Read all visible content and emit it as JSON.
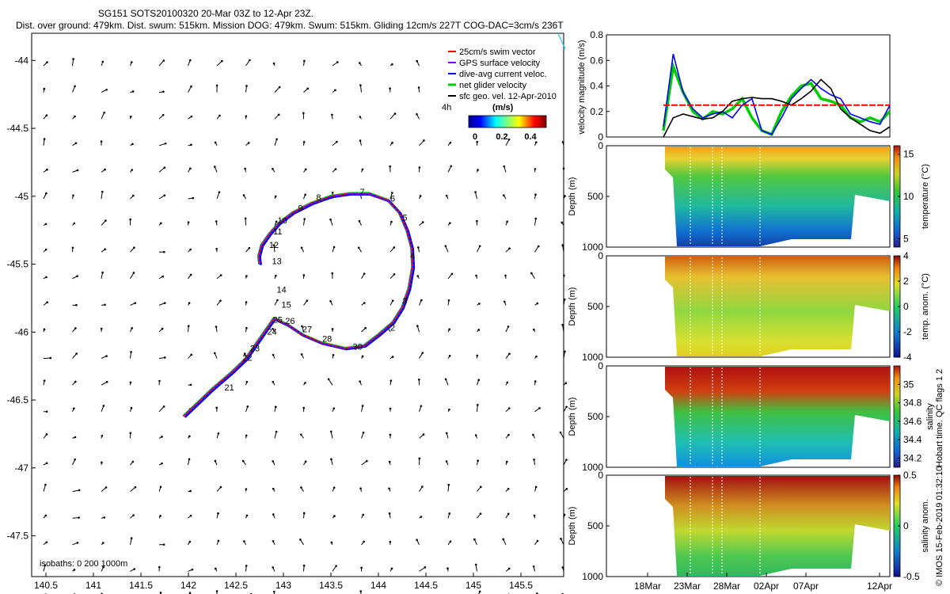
{
  "title_line1": "SG151 SOTS20100320 20-Mar 03Z to 12-Apr 23Z.",
  "title_line2": "Dist. over ground: 479km. Dist. swum: 515km. Mission DOG: 479km. Swum: 515km. Gliding 12cm/s 227T COG-DAC=3cm/s 236T",
  "map": {
    "x_ticks": [
      "140.5",
      "141",
      "141.5",
      "142",
      "142.5",
      "143",
      "143.5",
      "144",
      "144.5",
      "145",
      "145.5"
    ],
    "y_ticks": [
      "-44",
      "-44.5",
      "-45",
      "-45.5",
      "-46",
      "-46.5",
      "-47",
      "-47.5"
    ],
    "legend": [
      "25cm/s swim vector",
      "GPS surface velocity",
      "dive-avg current veloc.",
      "net glider velocity",
      "sfc geo. vel. 12-Apr-2010"
    ],
    "legend_colors": [
      "#ff0000",
      "#8000ff",
      "#0000ff",
      "#00cc00",
      "#000000"
    ],
    "scale_label": "4h",
    "colorbar_title": "(m/s)",
    "colorbar_ticks": [
      "0",
      "0.2",
      "0.4"
    ],
    "isobaths": "isobaths: 0   200  1000m",
    "day_labels": [
      {
        "t": "2",
        "lon": 144.15,
        "lat": -45.99
      },
      {
        "t": "3",
        "lon": 144.28,
        "lat": -45.79
      },
      {
        "t": "4",
        "lon": 144.36,
        "lat": -45.46
      },
      {
        "t": "5",
        "lon": 144.28,
        "lat": -45.18
      },
      {
        "t": "6",
        "lon": 144.15,
        "lat": -45.04
      },
      {
        "t": "7",
        "lon": 143.83,
        "lat": -44.99
      },
      {
        "t": "8",
        "lon": 143.37,
        "lat": -45.03
      },
      {
        "t": "9",
        "lon": 143.18,
        "lat": -45.11
      },
      {
        "t": "10",
        "lon": 142.99,
        "lat": -45.2
      },
      {
        "t": "11",
        "lon": 142.94,
        "lat": -45.28
      },
      {
        "t": "12",
        "lon": 142.9,
        "lat": -45.38
      },
      {
        "t": "13",
        "lon": 142.93,
        "lat": -45.5
      },
      {
        "t": "14",
        "lon": 142.98,
        "lat": -45.71
      },
      {
        "t": "15",
        "lon": 143.03,
        "lat": -45.82
      },
      {
        "t": "21",
        "lon": 142.43,
        "lat": -46.43
      },
      {
        "t": "22",
        "lon": 142.62,
        "lat": -46.21
      },
      {
        "t": "23",
        "lon": 142.7,
        "lat": -46.14
      },
      {
        "t": "24",
        "lon": 142.88,
        "lat": -46.02
      },
      {
        "t": "25",
        "lon": 142.94,
        "lat": -45.93
      },
      {
        "t": "26",
        "lon": 143.07,
        "lat": -45.94
      },
      {
        "t": "27",
        "lon": 143.25,
        "lat": -46.0
      },
      {
        "t": "28",
        "lon": 143.46,
        "lat": -46.07
      },
      {
        "t": "30",
        "lon": 143.78,
        "lat": -46.13
      }
    ]
  },
  "velocity_panel": {
    "ylabel": "velocity magnitude (m/s)",
    "y_ticks": [
      "0",
      "0.2",
      "0.4",
      "0.6",
      "0.8"
    ],
    "ylim": [
      0,
      0.8
    ],
    "swim_vector_level": 0.25
  },
  "section_panels": [
    {
      "ylabel": "Depth (m)",
      "cblabel": "temperature (°C)",
      "cb_ticks": [
        "5",
        "10",
        "15"
      ]
    },
    {
      "ylabel": "Depth (m)",
      "cblabel": "temp. anom. (°C)",
      "cb_ticks": [
        "-4",
        "-2",
        "0",
        "2",
        "4"
      ]
    },
    {
      "ylabel": "Depth (m)",
      "cblabel": "salinity",
      "cb_ticks": [
        "34.2",
        "34.4",
        "34.6",
        "34.8",
        "35"
      ]
    },
    {
      "ylabel": "Depth (m)",
      "cblabel": "salinity anom.",
      "cb_ticks": [
        "-0.5",
        "0",
        "0.5"
      ]
    }
  ],
  "depth_ticks": [
    "0",
    "500",
    "1000"
  ],
  "time_ticks": [
    "18Mar",
    "23Mar",
    "28Mar",
    "02Apr",
    "07Apr",
    "12Apr"
  ],
  "qc_note": "Hobart time. QC flags 1  2",
  "credit": "© IMOS 15-Feb-2019 01:32:10",
  "chart_data": [
    {
      "type": "line",
      "title": "SG151 SOTS20100320 20-Mar 03Z to 12-Apr 23Z.",
      "xlabel": "",
      "ylabel": "",
      "xlim": [
        140.35,
        145.95
      ],
      "ylim": [
        -47.8,
        -43.8
      ],
      "series": [
        {
          "name": "25cm/s swim vector",
          "x": [
            141.95,
            142.1,
            142.25,
            142.45,
            142.6,
            142.7,
            142.8,
            142.9,
            143.05,
            143.2,
            143.4,
            143.65,
            143.85,
            144.0,
            144.15,
            144.25,
            144.32,
            144.36,
            144.35,
            144.3,
            144.22,
            144.1,
            143.9,
            143.7,
            143.5,
            143.3,
            143.1,
            142.95,
            142.85,
            142.77,
            142.74,
            142.75
          ],
          "y": [
            -46.62,
            -46.52,
            -46.42,
            -46.3,
            -46.2,
            -46.1,
            -46.0,
            -45.9,
            -45.95,
            -46.02,
            -46.08,
            -46.12,
            -46.1,
            -46.02,
            -45.93,
            -45.82,
            -45.68,
            -45.52,
            -45.38,
            -45.25,
            -45.12,
            -45.03,
            -44.98,
            -44.98,
            -45.0,
            -45.05,
            -45.12,
            -45.2,
            -45.28,
            -45.36,
            -45.44,
            -45.5
          ]
        }
      ]
    },
    {
      "type": "line",
      "title": "",
      "xlabel": "",
      "ylabel": "velocity magnitude (m/s)",
      "x": [
        "21Mar",
        "22Mar",
        "23Mar",
        "24Mar",
        "25Mar",
        "26Mar",
        "27Mar",
        "28Mar",
        "29Mar",
        "30Mar",
        "31Mar",
        "01Apr",
        "02Apr",
        "03Apr",
        "04Apr",
        "05Apr",
        "06Apr",
        "07Apr",
        "08Apr",
        "09Apr",
        "10Apr",
        "11Apr",
        "12Apr",
        "13Apr"
      ],
      "ylim": [
        0,
        0.8
      ],
      "series": [
        {
          "name": "dive-avg current veloc.",
          "values": [
            0.08,
            0.65,
            0.35,
            0.22,
            0.15,
            0.18,
            0.2,
            0.15,
            0.25,
            0.3,
            0.05,
            0.02,
            0.15,
            0.3,
            0.38,
            0.45,
            0.38,
            0.33,
            0.3,
            0.18,
            0.15,
            0.12,
            0.1,
            0.25
          ]
        },
        {
          "name": "net glider velocity",
          "values": [
            0.05,
            0.55,
            0.35,
            0.2,
            0.14,
            0.2,
            0.18,
            0.22,
            0.3,
            0.15,
            0.05,
            0.02,
            0.2,
            0.32,
            0.4,
            0.42,
            0.3,
            0.28,
            0.25,
            0.15,
            0.12,
            0.15,
            0.12,
            0.2
          ]
        },
        {
          "name": "sfc geo. vel. 12-Apr-2010",
          "values": [
            0.0,
            0.15,
            0.18,
            0.16,
            0.14,
            0.15,
            0.2,
            0.28,
            0.3,
            0.31,
            0.3,
            0.3,
            0.28,
            0.25,
            0.3,
            0.36,
            0.45,
            0.38,
            0.22,
            0.15,
            0.1,
            0.05,
            0.03,
            0.08
          ]
        },
        {
          "name": "25cm/s swim vector",
          "values": [
            0.25,
            0.25,
            0.25,
            0.25,
            0.25,
            0.25,
            0.25,
            0.25,
            0.25,
            0.25,
            0.25,
            0.25,
            0.25,
            0.25,
            0.25,
            0.25,
            0.25,
            0.25,
            0.25,
            0.25,
            0.25,
            0.25,
            0.25,
            0.25
          ]
        }
      ]
    },
    {
      "type": "heatmap",
      "title": "",
      "xlabel": "",
      "ylabel": "Depth (m)",
      "colorbar_label": "temperature (°C)",
      "clim": [
        4,
        16
      ],
      "ylim": [
        1000,
        0
      ]
    },
    {
      "type": "heatmap",
      "title": "",
      "xlabel": "",
      "ylabel": "Depth (m)",
      "colorbar_label": "temp. anom. (°C)",
      "clim": [
        -4,
        4
      ],
      "ylim": [
        1000,
        0
      ]
    },
    {
      "type": "heatmap",
      "title": "",
      "xlabel": "",
      "ylabel": "Depth (m)",
      "colorbar_label": "salinity",
      "clim": [
        34.1,
        35.2
      ],
      "ylim": [
        1000,
        0
      ]
    },
    {
      "type": "heatmap",
      "title": "",
      "xlabel": "",
      "ylabel": "Depth (m)",
      "colorbar_label": "salinity anom.",
      "clim": [
        -0.5,
        0.5
      ],
      "ylim": [
        1000,
        0
      ]
    }
  ]
}
